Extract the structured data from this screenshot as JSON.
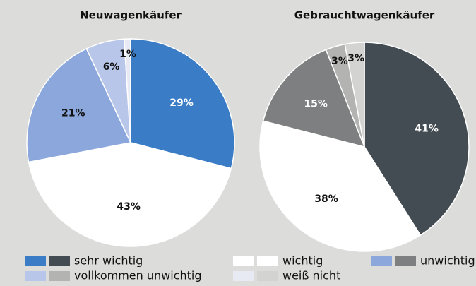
{
  "chart_data": [
    {
      "type": "pie",
      "title": "Neuwagenkäufer",
      "categories": [
        "sehr wichtig",
        "wichtig",
        "unwichtig",
        "vollkommen unwichtig",
        "weiß nicht"
      ],
      "values": [
        29,
        43,
        21,
        6,
        1
      ],
      "value_labels": [
        "29%",
        "43%",
        "21%",
        "6%",
        "1%"
      ],
      "colors": [
        "#3a7cc6",
        "#ffffff",
        "#8ba7dc",
        "#b8c6ea",
        "#e8eaf3"
      ]
    },
    {
      "type": "pie",
      "title": "Gebrauchtwagenkäufer",
      "categories": [
        "sehr wichtig",
        "wichtig",
        "unwichtig",
        "vollkommen unwichtig",
        "weiß nicht"
      ],
      "values": [
        41,
        38,
        15,
        3,
        3
      ],
      "value_labels": [
        "41%",
        "38%",
        "15%",
        "3%",
        "3%"
      ],
      "colors": [
        "#434c52",
        "#ffffff",
        "#7d7f80",
        "#b3b3b1",
        "#d3d3d1"
      ]
    }
  ]
}
